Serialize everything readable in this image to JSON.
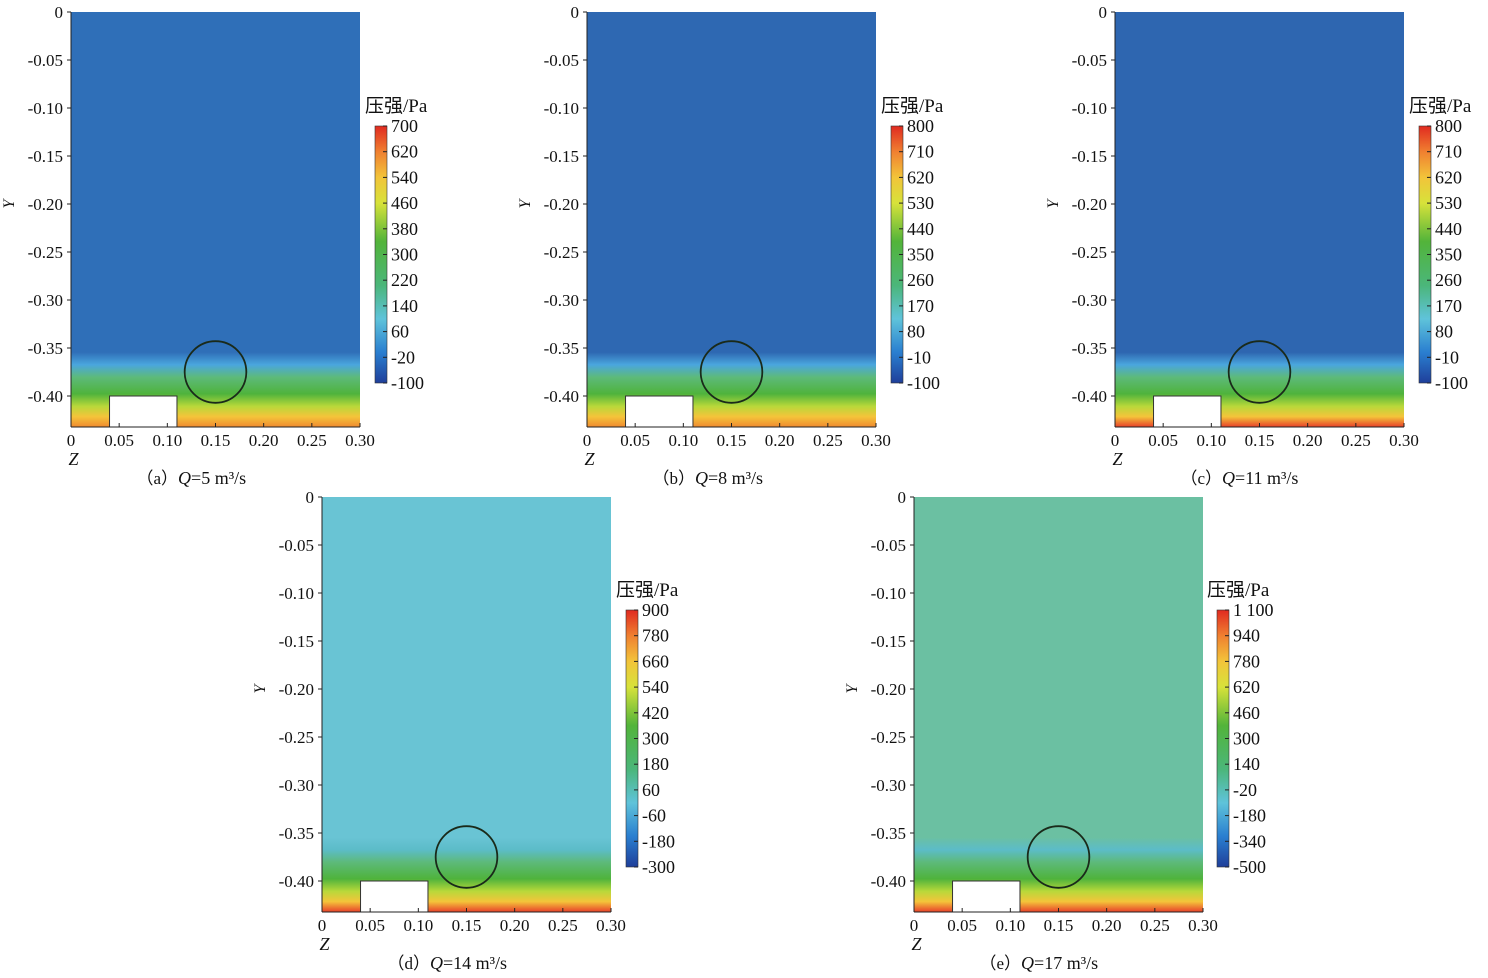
{
  "chart_data": {
    "type": "heatmap",
    "xlabel": "Z",
    "ylabel": "Y",
    "xlim": [
      0,
      0.3
    ],
    "ylim": [
      -0.43,
      0
    ],
    "xticks": [
      "0",
      "0.05",
      "0.10",
      "0.15",
      "0.20",
      "0.25",
      "0.30"
    ],
    "yticks": [
      "0",
      "-0.05",
      "-0.10",
      "-0.15",
      "-0.20",
      "-0.25",
      "-0.30",
      "-0.35",
      "-0.40"
    ],
    "obstacle": {
      "z": [
        0.04,
        0.11
      ],
      "y": [
        -0.43,
        -0.4
      ]
    },
    "circle": {
      "z": 0.15,
      "y": -0.375,
      "r": 0.032
    },
    "panels": [
      {
        "id": "a",
        "caption_prefix": "（a）",
        "caption_q": "Q",
        "caption_rest": "=5 m³/s",
        "Q": 5,
        "colorbar_title": "压强/Pa",
        "colorbar_ticks": [
          "700",
          "620",
          "540",
          "460",
          "380",
          "300",
          "220",
          "140",
          "60",
          "-20",
          "-100"
        ],
        "range": [
          -100,
          700
        ],
        "upper_value": 60,
        "background": "#2f6fb8"
      },
      {
        "id": "b",
        "caption_prefix": "（b）",
        "caption_q": "Q",
        "caption_rest": "=8 m³/s",
        "Q": 8,
        "colorbar_title": "压强/Pa",
        "colorbar_ticks": [
          "800",
          "710",
          "620",
          "530",
          "440",
          "350",
          "260",
          "170",
          "80",
          "-10",
          "-100"
        ],
        "range": [
          -100,
          800
        ],
        "upper_value": 40,
        "background": "#2e68b2"
      },
      {
        "id": "c",
        "caption_prefix": "（c）",
        "caption_q": "Q",
        "caption_rest": "=11 m³/s",
        "Q": 11,
        "colorbar_title": "压强/Pa",
        "colorbar_ticks": [
          "800",
          "710",
          "620",
          "530",
          "440",
          "350",
          "260",
          "170",
          "80",
          "-10",
          "-100"
        ],
        "range": [
          -100,
          800
        ],
        "upper_value": 30,
        "background": "#2e66b0"
      },
      {
        "id": "d",
        "caption_prefix": "（d）",
        "caption_q": "Q",
        "caption_rest": "=14 m³/s",
        "Q": 14,
        "colorbar_title": "压强/Pa",
        "colorbar_ticks": [
          "900",
          "780",
          "660",
          "540",
          "420",
          "300",
          "180",
          "60",
          "-60",
          "-180",
          "-300"
        ],
        "range": [
          -300,
          900
        ],
        "upper_value": 60,
        "background": "#69c4d4"
      },
      {
        "id": "e",
        "caption_prefix": "（e）",
        "caption_q": "Q",
        "caption_rest": "=17 m³/s",
        "Q": 17,
        "colorbar_title": "压强/Pa",
        "colorbar_ticks": [
          "1 100",
          "940",
          "780",
          "620",
          "460",
          "300",
          "140",
          "-20",
          "-180",
          "-340",
          "-500"
        ],
        "range": [
          -500,
          1100
        ],
        "upper_value": 140,
        "background": "#6bc0a2"
      }
    ]
  }
}
